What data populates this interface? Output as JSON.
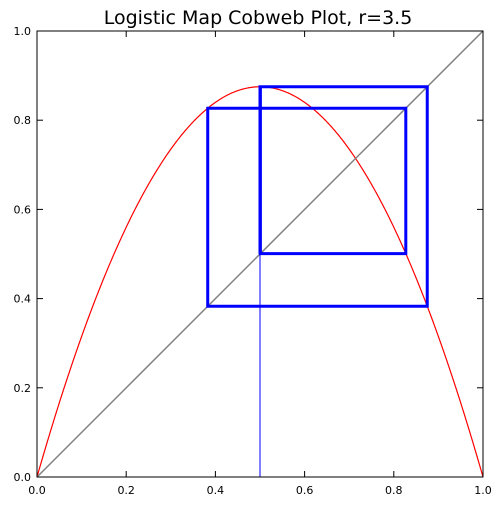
{
  "chart_data": {
    "type": "line",
    "title": "Logistic Map Cobweb Plot, r=3.5",
    "xlabel": "",
    "ylabel": "",
    "xlim": [
      0.0,
      1.0
    ],
    "ylim": [
      0.0,
      1.0
    ],
    "grid": false,
    "r": 3.5,
    "x_ticks": [
      "0.0",
      "0.2",
      "0.4",
      "0.6",
      "0.8",
      "1.0"
    ],
    "y_ticks": [
      "0.0",
      "0.2",
      "0.4",
      "0.6",
      "0.8",
      "1.0"
    ],
    "series": [
      {
        "kind": "curve",
        "function": "r*x*(1-x)",
        "color": "#ff0000"
      },
      {
        "kind": "identity",
        "x": [
          0.0,
          1.0
        ],
        "y": [
          0.0,
          1.0
        ],
        "color": "#808080"
      },
      {
        "kind": "initial-segment",
        "x": [
          0.5,
          0.5
        ],
        "y": [
          0.0,
          0.5
        ],
        "color": "#0000ff"
      },
      {
        "kind": "cobweb",
        "color": "#0000ff",
        "x": [
          0.5,
          0.5,
          0.875,
          0.875,
          0.3828,
          0.3828,
          0.8269,
          0.8269,
          0.5009,
          0.5009,
          0.875
        ],
        "y": [
          0.5,
          0.875,
          0.875,
          0.3828,
          0.3828,
          0.8269,
          0.8269,
          0.5009,
          0.5009,
          0.875,
          0.875
        ]
      }
    ]
  }
}
